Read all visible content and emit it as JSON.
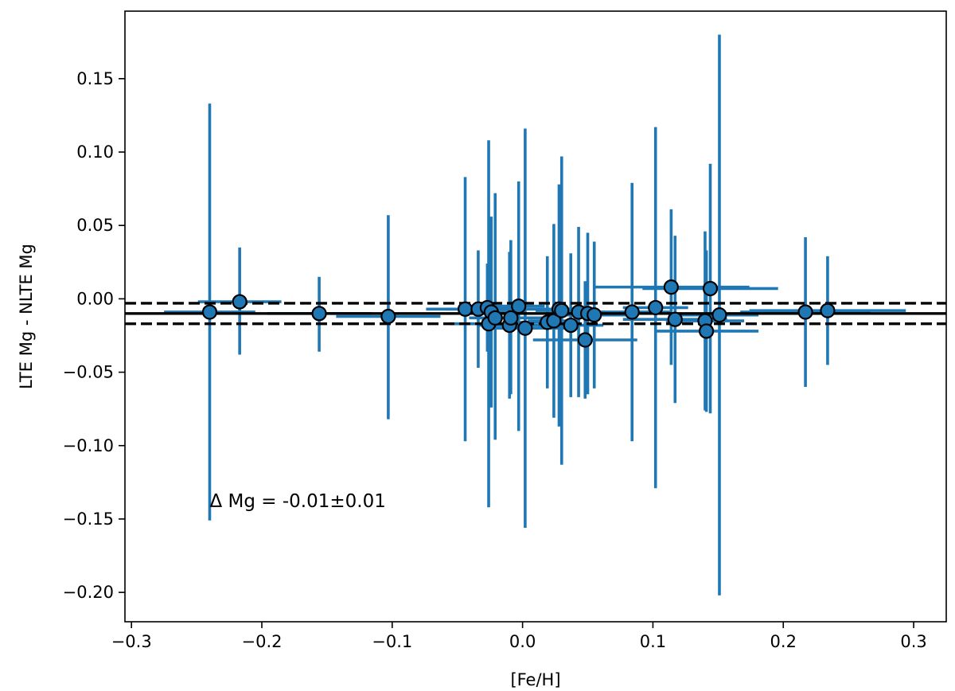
{
  "chart_data": {
    "type": "scatter",
    "title": "",
    "xlabel": "[Fe/H]",
    "ylabel": "LTE Mg - NLTE Mg",
    "xlim": [
      -0.305,
      0.325
    ],
    "ylim": [
      -0.22,
      0.196
    ],
    "xticks": [
      -0.3,
      -0.2,
      -0.1,
      0.0,
      0.1,
      0.2,
      0.3
    ],
    "xtick_labels": [
      "−0.3",
      "−0.2",
      "−0.1",
      "0.0",
      "0.1",
      "0.2",
      "0.3"
    ],
    "yticks": [
      -0.2,
      -0.15,
      -0.1,
      -0.05,
      0.0,
      0.05,
      0.1,
      0.15
    ],
    "ytick_labels": [
      "−0.20",
      "−0.15",
      "−0.10",
      "−0.05",
      "0.00",
      "0.05",
      "0.10",
      "0.15"
    ],
    "grid": false,
    "colors": {
      "errorbar": "#1f77b4",
      "marker_fill": "#1f77b4",
      "marker_edge": "#000000",
      "lines": "#000000"
    },
    "mean_line": {
      "y": -0.01,
      "style": "solid"
    },
    "band_lines": [
      {
        "y": -0.003,
        "style": "dashed"
      },
      {
        "y": -0.017,
        "style": "dashed"
      }
    ],
    "annotation": {
      "text": "Δ Mg = -0.01±0.01",
      "x": -0.24,
      "y": -0.142
    },
    "points": [
      {
        "x": -0.24,
        "y": -0.009,
        "xerr": 0.035,
        "yerr_low": 0.142,
        "yerr_high": 0.142
      },
      {
        "x": -0.217,
        "y": -0.002,
        "xerr": 0.032,
        "yerr_low": 0.036,
        "yerr_high": 0.037
      },
      {
        "x": -0.156,
        "y": -0.01,
        "xerr": 0.04,
        "yerr_low": 0.026,
        "yerr_high": 0.025
      },
      {
        "x": -0.103,
        "y": -0.012,
        "xerr": 0.04,
        "yerr_low": 0.07,
        "yerr_high": 0.069
      },
      {
        "x": -0.044,
        "y": -0.007,
        "xerr": 0.03,
        "yerr_low": 0.09,
        "yerr_high": 0.09
      },
      {
        "x": -0.034,
        "y": -0.007,
        "xerr": 0.025,
        "yerr_low": 0.04,
        "yerr_high": 0.04
      },
      {
        "x": -0.027,
        "y": -0.006,
        "xerr": 0.022,
        "yerr_low": 0.03,
        "yerr_high": 0.03
      },
      {
        "x": -0.026,
        "y": -0.017,
        "xerr": 0.03,
        "yerr_low": 0.125,
        "yerr_high": 0.125
      },
      {
        "x": -0.024,
        "y": -0.009,
        "xerr": 0.02,
        "yerr_low": 0.065,
        "yerr_high": 0.065
      },
      {
        "x": -0.021,
        "y": -0.013,
        "xerr": 0.02,
        "yerr_low": 0.083,
        "yerr_high": 0.085
      },
      {
        "x": -0.01,
        "y": -0.018,
        "xerr": 0.025,
        "yerr_low": 0.05,
        "yerr_high": 0.05
      },
      {
        "x": -0.009,
        "y": -0.013,
        "xerr": 0.025,
        "yerr_low": 0.052,
        "yerr_high": 0.053
      },
      {
        "x": -0.003,
        "y": -0.005,
        "xerr": 0.02,
        "yerr_low": 0.085,
        "yerr_high": 0.085
      },
      {
        "x": 0.002,
        "y": -0.02,
        "xerr": 0.03,
        "yerr_low": 0.136,
        "yerr_high": 0.136
      },
      {
        "x": 0.019,
        "y": -0.016,
        "xerr": 0.025,
        "yerr_low": 0.045,
        "yerr_high": 0.045
      },
      {
        "x": 0.024,
        "y": -0.015,
        "xerr": 0.02,
        "yerr_low": 0.066,
        "yerr_high": 0.066
      },
      {
        "x": 0.028,
        "y": -0.007,
        "xerr": 0.025,
        "yerr_low": 0.08,
        "yerr_high": 0.085
      },
      {
        "x": 0.03,
        "y": -0.008,
        "xerr": 0.02,
        "yerr_low": 0.105,
        "yerr_high": 0.105
      },
      {
        "x": 0.037,
        "y": -0.018,
        "xerr": 0.025,
        "yerr_low": 0.049,
        "yerr_high": 0.049
      },
      {
        "x": 0.043,
        "y": -0.009,
        "xerr": 0.02,
        "yerr_low": 0.058,
        "yerr_high": 0.058
      },
      {
        "x": 0.048,
        "y": -0.028,
        "xerr": 0.04,
        "yerr_low": 0.04,
        "yerr_high": 0.04
      },
      {
        "x": 0.05,
        "y": -0.01,
        "xerr": 0.025,
        "yerr_low": 0.055,
        "yerr_high": 0.055
      },
      {
        "x": 0.055,
        "y": -0.011,
        "xerr": 0.025,
        "yerr_low": 0.05,
        "yerr_high": 0.05
      },
      {
        "x": 0.084,
        "y": -0.009,
        "xerr": 0.03,
        "yerr_low": 0.088,
        "yerr_high": 0.088
      },
      {
        "x": 0.102,
        "y": -0.006,
        "xerr": 0.025,
        "yerr_low": 0.123,
        "yerr_high": 0.123
      },
      {
        "x": 0.114,
        "y": 0.008,
        "xerr": 0.06,
        "yerr_low": 0.053,
        "yerr_high": 0.053
      },
      {
        "x": 0.117,
        "y": -0.014,
        "xerr": 0.04,
        "yerr_low": 0.057,
        "yerr_high": 0.057
      },
      {
        "x": 0.14,
        "y": -0.015,
        "xerr": 0.03,
        "yerr_low": 0.061,
        "yerr_high": 0.061
      },
      {
        "x": 0.141,
        "y": -0.022,
        "xerr": 0.04,
        "yerr_low": 0.055,
        "yerr_high": 0.055
      },
      {
        "x": 0.144,
        "y": 0.007,
        "xerr": 0.052,
        "yerr_low": 0.085,
        "yerr_high": 0.085
      },
      {
        "x": 0.151,
        "y": -0.011,
        "xerr": 0.03,
        "yerr_low": 0.191,
        "yerr_high": 0.191
      },
      {
        "x": 0.217,
        "y": -0.009,
        "xerr": 0.05,
        "yerr_low": 0.051,
        "yerr_high": 0.051
      },
      {
        "x": 0.234,
        "y": -0.008,
        "xerr": 0.06,
        "yerr_low": 0.037,
        "yerr_high": 0.037
      }
    ]
  }
}
